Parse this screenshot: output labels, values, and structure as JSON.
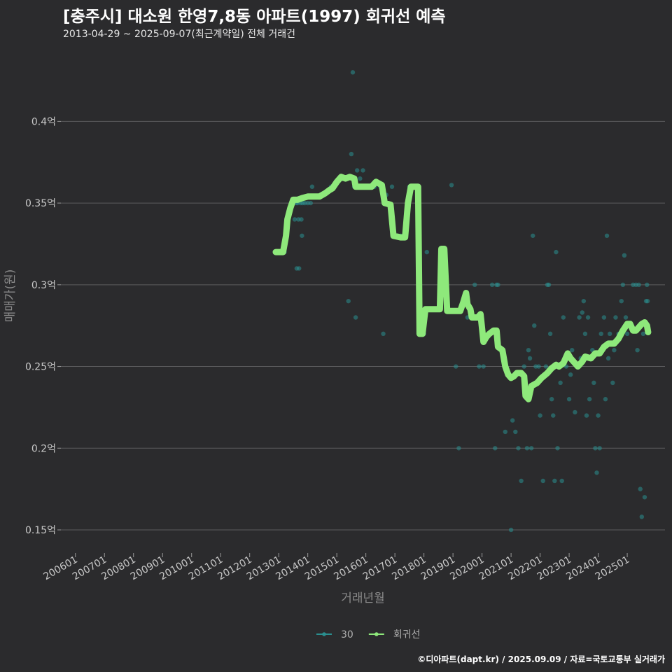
{
  "header": {
    "title": "[충주시] 대소원 한영7,8동 아파트(1997) 회귀선 예측",
    "subtitle": "2013-04-29 ~ 2025-09-07(최근계약일) 전체 거래건"
  },
  "credit": "©디아파트(dapt.kr) / 2025.09.09 / 자료=국토교통부 실거래가",
  "chart_data": {
    "type": "scatter",
    "xlabel": "거래년월",
    "ylabel": "매매가(원)",
    "xlim": [
      2005.5,
      2026.3
    ],
    "ylim": [
      0.138,
      0.44
    ],
    "x_ticks": [
      {
        "value": 2006,
        "label": "200601"
      },
      {
        "value": 2007,
        "label": "200701"
      },
      {
        "value": 2008,
        "label": "200801"
      },
      {
        "value": 2009,
        "label": "200901"
      },
      {
        "value": 2010,
        "label": "201001"
      },
      {
        "value": 2011,
        "label": "201101"
      },
      {
        "value": 2012,
        "label": "201201"
      },
      {
        "value": 2013,
        "label": "201301"
      },
      {
        "value": 2014,
        "label": "201401"
      },
      {
        "value": 2015,
        "label": "201501"
      },
      {
        "value": 2016,
        "label": "201601"
      },
      {
        "value": 2017,
        "label": "201701"
      },
      {
        "value": 2018,
        "label": "201801"
      },
      {
        "value": 2019,
        "label": "201901"
      },
      {
        "value": 2020,
        "label": "202001"
      },
      {
        "value": 2021,
        "label": "202101"
      },
      {
        "value": 2022,
        "label": "202201"
      },
      {
        "value": 2023,
        "label": "202301"
      },
      {
        "value": 2024,
        "label": "202401"
      },
      {
        "value": 2025,
        "label": "202501"
      }
    ],
    "y_ticks": [
      {
        "value": 0.15,
        "label": "0.15억"
      },
      {
        "value": 0.2,
        "label": "0.2억"
      },
      {
        "value": 0.25,
        "label": "0.25억"
      },
      {
        "value": 0.3,
        "label": "0.3억"
      },
      {
        "value": 0.35,
        "label": "0.35억"
      },
      {
        "value": 0.4,
        "label": "0.4억"
      }
    ],
    "grid": true,
    "legend_position": "bottom",
    "series": [
      {
        "name": "30",
        "type": "scatter",
        "color": "#2a8f8f",
        "points": [
          [
            2013.2,
            0.32
          ],
          [
            2013.55,
            0.34
          ],
          [
            2013.6,
            0.35
          ],
          [
            2013.62,
            0.31
          ],
          [
            2013.65,
            0.35
          ],
          [
            2013.68,
            0.34
          ],
          [
            2013.7,
            0.31
          ],
          [
            2013.75,
            0.35
          ],
          [
            2013.78,
            0.34
          ],
          [
            2013.8,
            0.33
          ],
          [
            2013.82,
            0.35
          ],
          [
            2013.9,
            0.35
          ],
          [
            2014.0,
            0.35
          ],
          [
            2014.1,
            0.35
          ],
          [
            2014.15,
            0.36
          ],
          [
            2014.5,
            0.355
          ],
          [
            2014.8,
            0.36
          ],
          [
            2015.1,
            0.365
          ],
          [
            2015.2,
            0.365
          ],
          [
            2015.5,
            0.38
          ],
          [
            2015.55,
            0.43
          ],
          [
            2015.6,
            0.36
          ],
          [
            2015.65,
            0.28
          ],
          [
            2015.4,
            0.29
          ],
          [
            2015.7,
            0.37
          ],
          [
            2015.8,
            0.365
          ],
          [
            2015.9,
            0.37
          ],
          [
            2016.1,
            0.36
          ],
          [
            2016.3,
            0.36
          ],
          [
            2016.5,
            0.36
          ],
          [
            2016.6,
            0.27
          ],
          [
            2016.7,
            0.355
          ],
          [
            2016.9,
            0.36
          ],
          [
            2017.2,
            0.33
          ],
          [
            2017.3,
            0.33
          ],
          [
            2017.5,
            0.36
          ],
          [
            2018.0,
            0.27
          ],
          [
            2018.1,
            0.32
          ],
          [
            2018.8,
            0.285
          ],
          [
            2018.95,
            0.361
          ],
          [
            2019.1,
            0.25
          ],
          [
            2019.2,
            0.2
          ],
          [
            2019.5,
            0.28
          ],
          [
            2019.75,
            0.3
          ],
          [
            2019.9,
            0.25
          ],
          [
            2020.05,
            0.25
          ],
          [
            2020.35,
            0.3
          ],
          [
            2020.45,
            0.2
          ],
          [
            2020.5,
            0.3
          ],
          [
            2020.55,
            0.3
          ],
          [
            2020.8,
            0.21
          ],
          [
            2021.0,
            0.15
          ],
          [
            2021.05,
            0.217
          ],
          [
            2021.15,
            0.21
          ],
          [
            2021.25,
            0.2
          ],
          [
            2021.35,
            0.18
          ],
          [
            2021.45,
            0.25
          ],
          [
            2021.55,
            0.2
          ],
          [
            2021.6,
            0.26
          ],
          [
            2021.65,
            0.255
          ],
          [
            2021.7,
            0.2
          ],
          [
            2021.75,
            0.33
          ],
          [
            2021.8,
            0.275
          ],
          [
            2021.85,
            0.25
          ],
          [
            2021.9,
            0.24
          ],
          [
            2021.95,
            0.25
          ],
          [
            2022.0,
            0.22
          ],
          [
            2022.1,
            0.18
          ],
          [
            2022.2,
            0.25
          ],
          [
            2022.25,
            0.3
          ],
          [
            2022.3,
            0.3
          ],
          [
            2022.35,
            0.27
          ],
          [
            2022.4,
            0.23
          ],
          [
            2022.45,
            0.22
          ],
          [
            2022.5,
            0.18
          ],
          [
            2022.55,
            0.32
          ],
          [
            2022.6,
            0.2
          ],
          [
            2022.65,
            0.25
          ],
          [
            2022.7,
            0.24
          ],
          [
            2022.75,
            0.18
          ],
          [
            2022.8,
            0.28
          ],
          [
            2022.9,
            0.25
          ],
          [
            2023.0,
            0.23
          ],
          [
            2023.05,
            0.245
          ],
          [
            2023.1,
            0.26
          ],
          [
            2023.2,
            0.222
          ],
          [
            2023.3,
            0.25
          ],
          [
            2023.35,
            0.28
          ],
          [
            2023.4,
            0.255
          ],
          [
            2023.45,
            0.283
          ],
          [
            2023.5,
            0.29
          ],
          [
            2023.55,
            0.27
          ],
          [
            2023.6,
            0.22
          ],
          [
            2023.65,
            0.28
          ],
          [
            2023.7,
            0.23
          ],
          [
            2023.75,
            0.255
          ],
          [
            2023.8,
            0.26
          ],
          [
            2023.85,
            0.24
          ],
          [
            2023.9,
            0.2
          ],
          [
            2023.95,
            0.185
          ],
          [
            2024.0,
            0.22
          ],
          [
            2024.05,
            0.2
          ],
          [
            2024.1,
            0.27
          ],
          [
            2024.2,
            0.28
          ],
          [
            2024.25,
            0.23
          ],
          [
            2024.3,
            0.33
          ],
          [
            2024.35,
            0.255
          ],
          [
            2024.4,
            0.27
          ],
          [
            2024.5,
            0.24
          ],
          [
            2024.55,
            0.26
          ],
          [
            2024.6,
            0.28
          ],
          [
            2024.7,
            0.27
          ],
          [
            2024.8,
            0.29
          ],
          [
            2024.85,
            0.3
          ],
          [
            2024.9,
            0.318
          ],
          [
            2024.95,
            0.28
          ],
          [
            2025.0,
            0.27
          ],
          [
            2025.1,
            0.275
          ],
          [
            2025.2,
            0.3
          ],
          [
            2025.3,
            0.3
          ],
          [
            2025.35,
            0.26
          ],
          [
            2025.4,
            0.3
          ],
          [
            2025.45,
            0.175
          ],
          [
            2025.5,
            0.158
          ],
          [
            2025.55,
            0.27
          ],
          [
            2025.6,
            0.17
          ],
          [
            2025.65,
            0.29
          ],
          [
            2025.68,
            0.3
          ],
          [
            2025.7,
            0.29
          ]
        ]
      },
      {
        "name": "회귀선",
        "type": "line",
        "color": "#8ee97b",
        "points": [
          [
            2012.9,
            0.32
          ],
          [
            2013.15,
            0.32
          ],
          [
            2013.25,
            0.33
          ],
          [
            2013.3,
            0.34
          ],
          [
            2013.4,
            0.347
          ],
          [
            2013.5,
            0.352
          ],
          [
            2013.65,
            0.352
          ],
          [
            2013.8,
            0.353
          ],
          [
            2014.0,
            0.354
          ],
          [
            2014.2,
            0.354
          ],
          [
            2014.4,
            0.354
          ],
          [
            2014.6,
            0.356
          ],
          [
            2014.75,
            0.358
          ],
          [
            2014.85,
            0.359
          ],
          [
            2015.0,
            0.363
          ],
          [
            2015.15,
            0.366
          ],
          [
            2015.3,
            0.365
          ],
          [
            2015.45,
            0.366
          ],
          [
            2015.6,
            0.365
          ],
          [
            2015.65,
            0.36
          ],
          [
            2015.9,
            0.36
          ],
          [
            2016.1,
            0.36
          ],
          [
            2016.2,
            0.36
          ],
          [
            2016.35,
            0.363
          ],
          [
            2016.55,
            0.361
          ],
          [
            2016.65,
            0.35
          ],
          [
            2016.85,
            0.349
          ],
          [
            2016.95,
            0.33
          ],
          [
            2017.2,
            0.329
          ],
          [
            2017.35,
            0.329
          ],
          [
            2017.45,
            0.35
          ],
          [
            2017.55,
            0.36
          ],
          [
            2017.8,
            0.36
          ],
          [
            2017.85,
            0.27
          ],
          [
            2017.95,
            0.27
          ],
          [
            2018.05,
            0.285
          ],
          [
            2018.3,
            0.285
          ],
          [
            2018.55,
            0.285
          ],
          [
            2018.6,
            0.322
          ],
          [
            2018.7,
            0.322
          ],
          [
            2018.8,
            0.284
          ],
          [
            2019.05,
            0.284
          ],
          [
            2019.25,
            0.284
          ],
          [
            2019.35,
            0.289
          ],
          [
            2019.45,
            0.295
          ],
          [
            2019.5,
            0.288
          ],
          [
            2019.6,
            0.285
          ],
          [
            2019.65,
            0.28
          ],
          [
            2019.85,
            0.28
          ],
          [
            2019.95,
            0.282
          ],
          [
            2020.05,
            0.265
          ],
          [
            2020.15,
            0.268
          ],
          [
            2020.25,
            0.27
          ],
          [
            2020.4,
            0.272
          ],
          [
            2020.5,
            0.272
          ],
          [
            2020.55,
            0.262
          ],
          [
            2020.7,
            0.26
          ],
          [
            2020.8,
            0.25
          ],
          [
            2020.9,
            0.245
          ],
          [
            2021.0,
            0.243
          ],
          [
            2021.1,
            0.244
          ],
          [
            2021.2,
            0.246
          ],
          [
            2021.35,
            0.246
          ],
          [
            2021.45,
            0.244
          ],
          [
            2021.5,
            0.232
          ],
          [
            2021.6,
            0.23
          ],
          [
            2021.7,
            0.238
          ],
          [
            2021.9,
            0.24
          ],
          [
            2022.05,
            0.243
          ],
          [
            2022.25,
            0.246
          ],
          [
            2022.4,
            0.249
          ],
          [
            2022.55,
            0.251
          ],
          [
            2022.65,
            0.25
          ],
          [
            2022.8,
            0.252
          ],
          [
            2022.95,
            0.258
          ],
          [
            2023.05,
            0.255
          ],
          [
            2023.15,
            0.253
          ],
          [
            2023.3,
            0.25
          ],
          [
            2023.45,
            0.253
          ],
          [
            2023.55,
            0.256
          ],
          [
            2023.75,
            0.255
          ],
          [
            2023.9,
            0.258
          ],
          [
            2024.05,
            0.258
          ],
          [
            2024.2,
            0.262
          ],
          [
            2024.35,
            0.264
          ],
          [
            2024.55,
            0.264
          ],
          [
            2024.7,
            0.267
          ],
          [
            2024.85,
            0.272
          ],
          [
            2025.0,
            0.276
          ],
          [
            2025.1,
            0.276
          ],
          [
            2025.2,
            0.272
          ],
          [
            2025.3,
            0.272
          ],
          [
            2025.4,
            0.274
          ],
          [
            2025.5,
            0.276
          ],
          [
            2025.6,
            0.277
          ],
          [
            2025.68,
            0.275
          ],
          [
            2025.72,
            0.271
          ]
        ]
      }
    ]
  }
}
